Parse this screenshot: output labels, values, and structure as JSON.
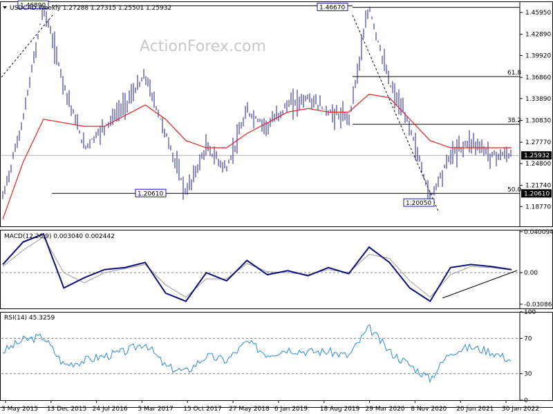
{
  "colors": {
    "price": "#1a1a9a",
    "ma": "#e02020",
    "macd": "#0b0b7a",
    "signal": "#9a9a9a",
    "rsi": "#2a8ad8",
    "grid": "#808080",
    "label_border": "#1a1aa0"
  },
  "chart_data": [
    {
      "type": "line",
      "panel": "price",
      "title": "USDCAD,Weekly  1.27288 1.27315 1.25501 1.25932",
      "watermark": "ActionForex.com",
      "ylim": [
        1.16,
        1.475
      ],
      "y_ticks": [
        "1.45950",
        "1.42890",
        "1.39920",
        "1.36860",
        "1.33890",
        "1.30830",
        "1.27770",
        "1.24800",
        "1.21740",
        "1.18770"
      ],
      "y_tick_values": [
        1.4595,
        1.4289,
        1.3992,
        1.3686,
        1.3389,
        1.3083,
        1.2777,
        1.248,
        1.2174,
        1.1877
      ],
      "x_labels": [
        "3 May 2015",
        "13 Dec 2015",
        "24 Jul 2016",
        "5 Mar 2017",
        "15 Oct 2017",
        "27 May 2018",
        "6 Jan 2019",
        "18 Aug 2019",
        "29 Mar 2020",
        "8 Nov 2020",
        "20 Jun 2021",
        "30 Jan 2022"
      ],
      "current_price": "1.25932",
      "current_price_value": 1.25932,
      "support_price": "1.20610",
      "support_price_value": 1.2061,
      "annotations": [
        {
          "text": "1.46890",
          "x": "13 Dec 2015",
          "y": 1.4689
        },
        {
          "text": "1.46670",
          "x": "29 Mar 2020",
          "y": 1.4667
        },
        {
          "text": "1.20610",
          "x": "5 Mar 2017",
          "y": 1.2061
        },
        {
          "text": "1.20050",
          "x": "8 Nov 2020",
          "y": 1.2005
        }
      ],
      "fib_levels": [
        {
          "label": "61.8",
          "value": 1.3697
        },
        {
          "label": "38.2",
          "value": 1.3029
        },
        {
          "label": "50.0",
          "value": 1.2061
        }
      ],
      "series": [
        {
          "name": "USDCAD",
          "x": [
            "3 May 2015",
            "Aug 2015",
            "13 Dec 2015",
            "Feb 2016",
            "Apr 2016",
            "24 Jul 2016",
            "Nov 2016",
            "5 Mar 2017",
            "Jun 2017",
            "Sep 2017",
            "15 Oct 2017",
            "Jan 2018",
            "27 May 2018",
            "Sep 2018",
            "6 Jan 2019",
            "May 2019",
            "18 Aug 2019",
            "Jan 2020",
            "29 Mar 2020",
            "Jun 2020",
            "8 Nov 2020",
            "Mar 2021",
            "20 Jun 2021",
            "Sep 2021",
            "30 Jan 2022",
            "Apr 2022"
          ],
          "values": [
            1.2,
            1.31,
            1.4689,
            1.36,
            1.27,
            1.3,
            1.33,
            1.37,
            1.29,
            1.2061,
            1.27,
            1.24,
            1.32,
            1.3,
            1.33,
            1.34,
            1.32,
            1.31,
            1.4667,
            1.36,
            1.3,
            1.2005,
            1.26,
            1.28,
            1.26,
            1.2593
          ]
        },
        {
          "name": "MA",
          "x": [
            "3 May 2015",
            "Aug 2015",
            "13 Dec 2015",
            "Feb 2016",
            "Apr 2016",
            "24 Jul 2016",
            "Nov 2016",
            "5 Mar 2017",
            "Jun 2017",
            "Sep 2017",
            "15 Oct 2017",
            "Jan 2018",
            "27 May 2018",
            "Sep 2018",
            "6 Jan 2019",
            "May 2019",
            "18 Aug 2019",
            "Jan 2020",
            "29 Mar 2020",
            "Jun 2020",
            "8 Nov 2020",
            "Mar 2021",
            "20 Jun 2021",
            "Sep 2021",
            "30 Jan 2022",
            "Apr 2022"
          ],
          "values": [
            1.17,
            1.25,
            1.31,
            1.305,
            1.3,
            1.3,
            1.315,
            1.33,
            1.31,
            1.28,
            1.27,
            1.27,
            1.29,
            1.305,
            1.32,
            1.325,
            1.32,
            1.32,
            1.345,
            1.34,
            1.31,
            1.28,
            1.27,
            1.27,
            1.27,
            1.27
          ]
        }
      ]
    },
    {
      "type": "line",
      "panel": "macd",
      "title": "MACD(12,26,9) 0.003040 0.002442",
      "ylim": [
        -0.035,
        0.042
      ],
      "y_ticks": [
        "0.040094",
        "0.00",
        "-0.03086"
      ],
      "y_tick_values": [
        0.040094,
        0.0,
        -0.03086
      ],
      "series": [
        {
          "name": "MACD",
          "x": [
            "3 May 2015",
            "Aug 2015",
            "13 Dec 2015",
            "Feb 2016",
            "Apr 2016",
            "24 Jul 2016",
            "Nov 2016",
            "5 Mar 2017",
            "Jun 2017",
            "Sep 2017",
            "15 Oct 2017",
            "Jan 2018",
            "27 May 2018",
            "Sep 2018",
            "6 Jan 2019",
            "May 2019",
            "18 Aug 2019",
            "Jan 2020",
            "29 Mar 2020",
            "Jun 2020",
            "8 Nov 2020",
            "Mar 2021",
            "20 Jun 2021",
            "Sep 2021",
            "30 Jan 2022",
            "Apr 2022"
          ],
          "values": [
            0.008,
            0.03,
            0.038,
            -0.015,
            -0.005,
            0.003,
            0.005,
            0.01,
            -0.02,
            -0.028,
            0.0,
            -0.008,
            0.012,
            -0.002,
            0.002,
            -0.003,
            0.005,
            -0.001,
            0.025,
            0.01,
            -0.015,
            -0.028,
            0.005,
            0.008,
            0.006,
            0.00304
          ]
        },
        {
          "name": "Signal",
          "x": [
            "3 May 2015",
            "Aug 2015",
            "13 Dec 2015",
            "Feb 2016",
            "Apr 2016",
            "24 Jul 2016",
            "Nov 2016",
            "5 Mar 2017",
            "Jun 2017",
            "Sep 2017",
            "15 Oct 2017",
            "Jan 2018",
            "27 May 2018",
            "Sep 2018",
            "6 Jan 2019",
            "May 2019",
            "18 Aug 2019",
            "Jan 2020",
            "29 Mar 2020",
            "Jun 2020",
            "8 Nov 2020",
            "Mar 2021",
            "20 Jun 2021",
            "Sep 2021",
            "30 Jan 2022",
            "Apr 2022"
          ],
          "values": [
            0.006,
            0.022,
            0.035,
            0.0,
            -0.01,
            0.0,
            0.004,
            0.008,
            -0.012,
            -0.024,
            -0.006,
            -0.006,
            0.009,
            0.001,
            0.0,
            -0.002,
            0.003,
            0.0,
            0.018,
            0.014,
            -0.008,
            -0.024,
            -0.002,
            0.006,
            0.005,
            0.002442
          ]
        }
      ]
    },
    {
      "type": "line",
      "panel": "rsi",
      "title": "RSI(14) 45.3259",
      "ylim": [
        0,
        100
      ],
      "y_ticks": [
        "100",
        "70",
        "30",
        "0"
      ],
      "y_tick_values": [
        100,
        70,
        30,
        0
      ],
      "series": [
        {
          "name": "RSI(14)",
          "x": [
            "3 May 2015",
            "Aug 2015",
            "13 Dec 2015",
            "Feb 2016",
            "Apr 2016",
            "24 Jul 2016",
            "Nov 2016",
            "5 Mar 2017",
            "Jun 2017",
            "Sep 2017",
            "15 Oct 2017",
            "Jan 2018",
            "27 May 2018",
            "Sep 2018",
            "6 Jan 2019",
            "May 2019",
            "18 Aug 2019",
            "Jan 2020",
            "29 Mar 2020",
            "Jun 2020",
            "8 Nov 2020",
            "Mar 2021",
            "20 Jun 2021",
            "Sep 2021",
            "30 Jan 2022",
            "Apr 2022"
          ],
          "values": [
            55,
            68,
            72,
            40,
            45,
            50,
            55,
            65,
            38,
            32,
            50,
            45,
            66,
            52,
            58,
            55,
            55,
            50,
            82,
            55,
            40,
            24,
            55,
            60,
            55,
            45.33
          ]
        }
      ]
    }
  ]
}
